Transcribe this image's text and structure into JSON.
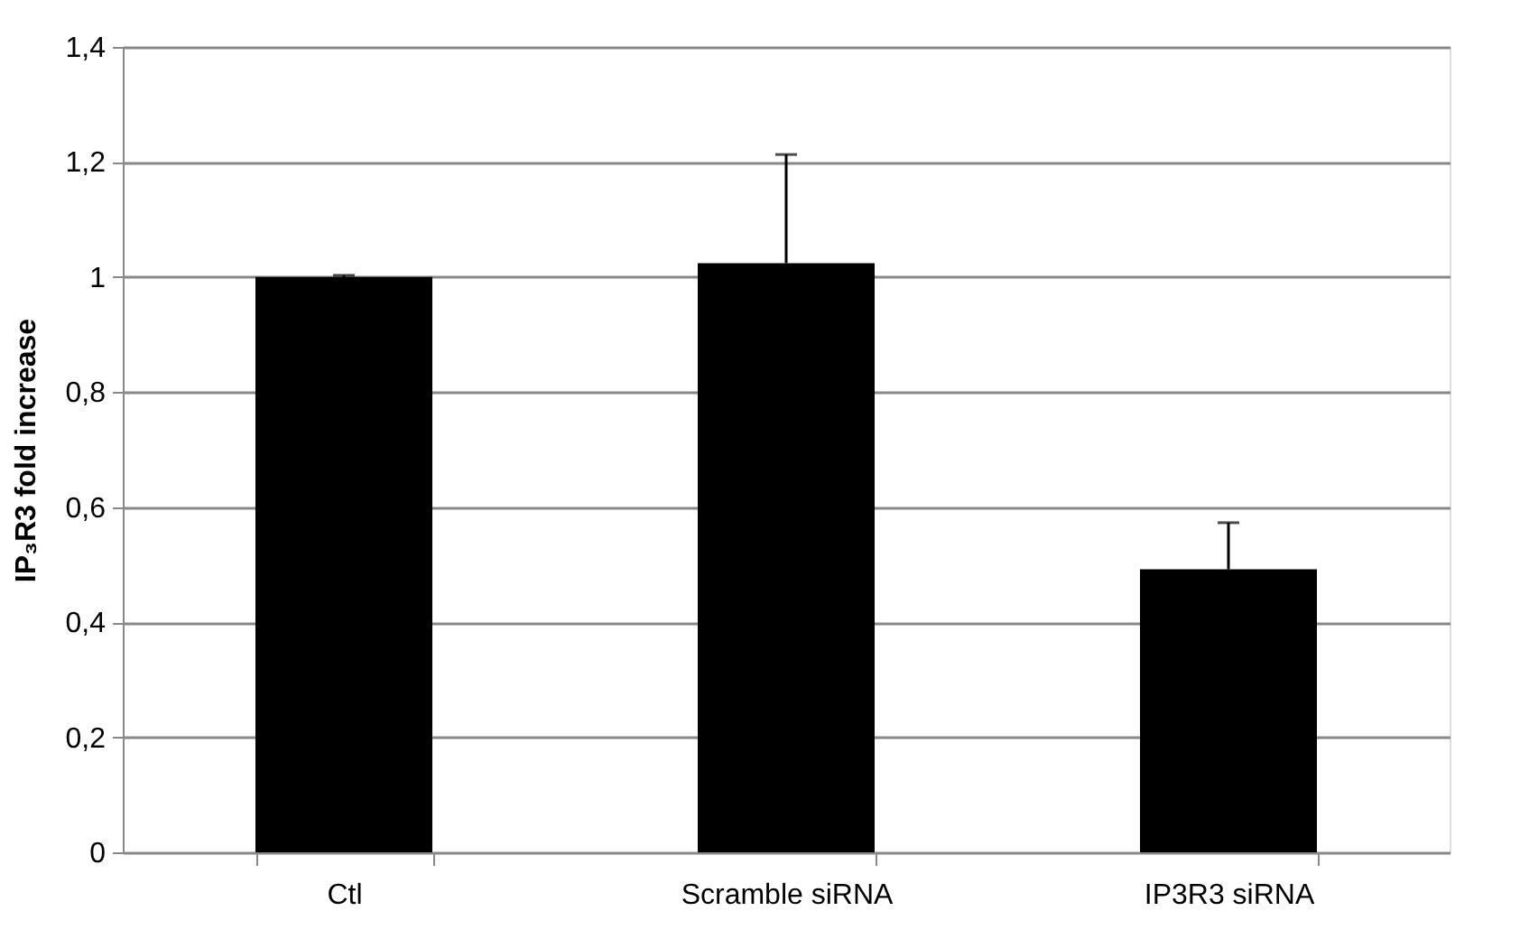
{
  "chart_data": {
    "type": "bar",
    "ylabel": "IP₃R3 fold increase",
    "categories": [
      "Ctl",
      "Scramble siRNA",
      "IP3R3 siRNA"
    ],
    "values": [
      1.0,
      1.024,
      0.492
    ],
    "errors": [
      [
        1.0,
        1.003
      ],
      [
        1.024,
        1.213
      ],
      [
        0.492,
        0.573
      ]
    ],
    "color": "#000000",
    "ylim": [
      0,
      1.4
    ],
    "yticks": [
      0,
      {
        "value": 0.2,
        "label": "0,2"
      },
      {
        "value": 0.4,
        "label": "0,4"
      },
      {
        "value": 0.6,
        "label": "0,6"
      },
      {
        "value": 0.8,
        "label": "0,8"
      },
      1,
      {
        "value": 1.2,
        "label": "1,2"
      },
      {
        "value": 1.4,
        "label": "1,4"
      }
    ],
    "grid": "y"
  }
}
